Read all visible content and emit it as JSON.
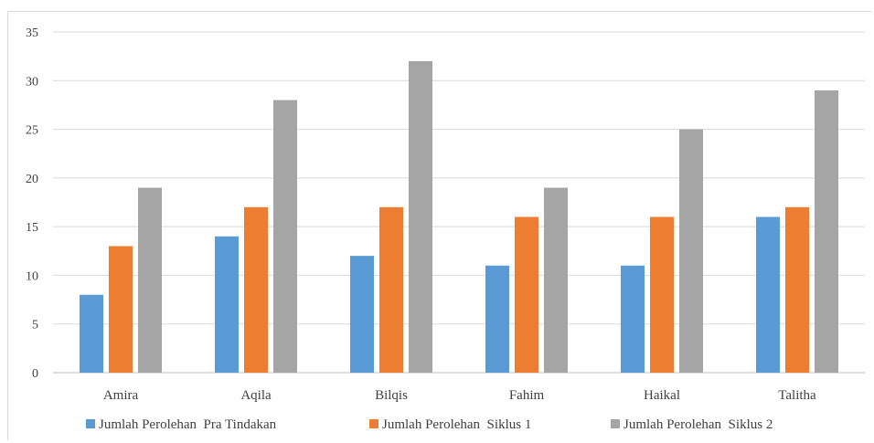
{
  "chart_data": {
    "type": "bar",
    "categories": [
      "Amira",
      "Aqila",
      "Bilqis",
      "Fahim",
      "Haikal",
      "Talitha"
    ],
    "series": [
      {
        "name": "Jumlah Perolehan  Pra Tindakan",
        "color": "#5b9bd5",
        "values": [
          8,
          14,
          12,
          11,
          11,
          16
        ]
      },
      {
        "name": "Jumlah Perolehan  Siklus 1",
        "color": "#ed7d31",
        "values": [
          13,
          17,
          17,
          16,
          16,
          17
        ]
      },
      {
        "name": "Jumlah Perolehan  Siklus 2",
        "color": "#a5a5a5",
        "values": [
          19,
          28,
          32,
          19,
          25,
          29
        ]
      }
    ],
    "yticks": [
      0,
      5,
      10,
      15,
      20,
      25,
      30,
      35
    ],
    "ylim": [
      0,
      35
    ],
    "grid": true,
    "legend_position": "bottom"
  }
}
